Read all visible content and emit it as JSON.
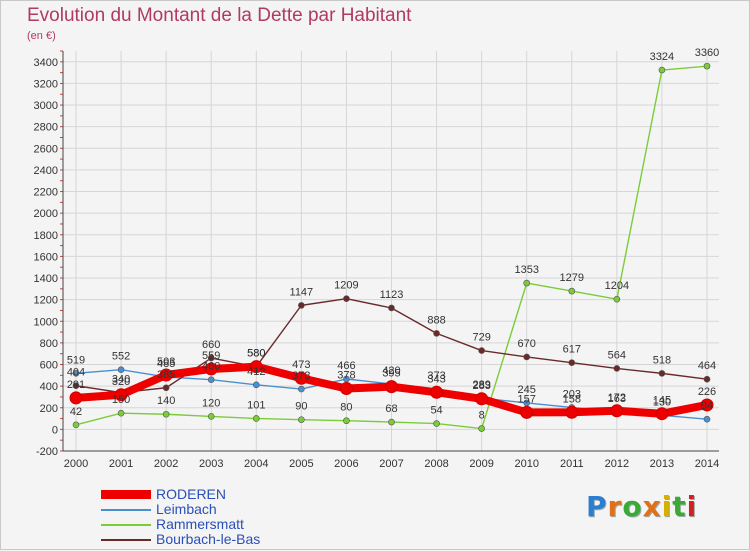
{
  "title": "Evolution du Montant de la Dette par Habitant",
  "subtitle": "(en €)",
  "logo": {
    "text": "Proxiti",
    "colors": [
      "#2c7fd0",
      "#e0701a",
      "#3aaa35",
      "#e0701a",
      "#d8b000",
      "#3aaa35",
      "#d32020"
    ]
  },
  "chart_data": {
    "type": "line",
    "title": "Evolution du Montant de la Dette par Habitant",
    "ylabel": "(en €)",
    "xlabel": "",
    "x": [
      "2000",
      "2001",
      "2002",
      "2003",
      "2004",
      "2005",
      "2006",
      "2007",
      "2008",
      "2009",
      "2010",
      "2011",
      "2012",
      "2013",
      "2014"
    ],
    "yticks": [
      -200,
      0,
      200,
      400,
      600,
      800,
      1000,
      1200,
      1400,
      1600,
      1800,
      2000,
      2200,
      2400,
      2600,
      2800,
      3000,
      3200,
      3400
    ],
    "ylim": [
      -200,
      3500
    ],
    "grid": true,
    "legend_position": "bottom-left",
    "series": [
      {
        "name": "RODEREN",
        "color": "#ee0000",
        "style": "thick",
        "values": [
          291,
          320,
          503,
          559,
          580,
          473,
          378,
          395,
          343,
          283,
          157,
          158,
          172,
          145,
          226
        ],
        "labels": [
          "291",
          "320",
          "503",
          "559",
          "580",
          "473",
          "378",
          "395",
          "343",
          "283",
          "157",
          "158",
          "172",
          "145",
          "226"
        ]
      },
      {
        "name": "Leimbach",
        "color": "#4a8fd0",
        "style": "thin",
        "values": [
          519,
          552,
          485,
          460,
          412,
          373,
          466,
          420,
          373,
          289,
          245,
          203,
          163,
          130,
          94
        ],
        "labels": [
          "519",
          "552",
          "485",
          "460",
          "412",
          "373",
          "466",
          "420",
          "373",
          "289",
          "245",
          "203",
          "163",
          "130",
          "94"
        ]
      },
      {
        "name": "Rammersmatt",
        "color": "#7ccc3a",
        "style": "thin",
        "values": [
          42,
          150,
          140,
          120,
          101,
          90,
          80,
          68,
          54,
          8,
          1353,
          1279,
          1204,
          3324,
          3360
        ],
        "labels": [
          "42",
          "150",
          "140",
          "120",
          "101",
          "90",
          "80",
          "68",
          "54",
          "8",
          "1353",
          "1279",
          "1204",
          "3324",
          "3360"
        ]
      },
      {
        "name": "Bourbach-le-Bas",
        "color": "#6a2a2a",
        "style": "thin",
        "values": [
          404,
          340,
          385,
          660,
          580,
          1147,
          1209,
          1123,
          888,
          729,
          670,
          617,
          564,
          518,
          464
        ],
        "labels": [
          "404",
          "340",
          "385",
          "660",
          "580",
          "1147",
          "1209",
          "1123",
          "888",
          "729",
          "670",
          "617",
          "564",
          "518",
          "464"
        ]
      }
    ]
  }
}
